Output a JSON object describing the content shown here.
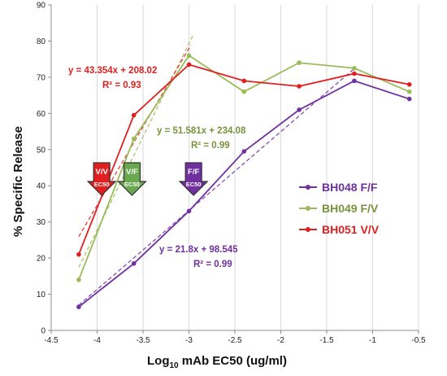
{
  "chart_data": {
    "type": "line",
    "title": "",
    "xlabel_main": "Log",
    "xlabel_sub": "10",
    "xlabel_rest": " mAb EC50 (ug/ml)",
    "ylabel": "% Specific Release",
    "xlim": [
      -4.5,
      -0.5
    ],
    "ylim": [
      0,
      90
    ],
    "xticks": [
      -4.5,
      -4,
      -3.5,
      -3,
      -2.5,
      -2,
      -1.5,
      -1,
      -0.5
    ],
    "xtick_labels": [
      "-4.5",
      "-4",
      "-3.5",
      "-3",
      "-2.5",
      "-2",
      "-1.5",
      "-1",
      "-0.5"
    ],
    "yticks": [
      0,
      10,
      20,
      30,
      40,
      50,
      60,
      70,
      80,
      90
    ],
    "ytick_labels": [
      "0",
      "10",
      "20",
      "30",
      "40",
      "50",
      "60",
      "70",
      "80",
      "90"
    ],
    "grid": "vertical",
    "legend_position": "right",
    "series": [
      {
        "name": "BH048 F/F",
        "color": "#7030A0",
        "x": [
          -4.2,
          -3.6,
          -3.0,
          -2.4,
          -1.8,
          -1.2,
          -0.6
        ],
        "y": [
          6.5,
          18.5,
          33,
          49.5,
          61,
          69,
          64
        ],
        "trend": {
          "slope": 21.8,
          "intercept": 98.545,
          "x0": -4.2,
          "x1": -1.2
        },
        "equation": "y = 21.8x + 98.545",
        "r2": "R² = 0.99",
        "ec50_label_top": "F/F",
        "ec50_label_bottom": "EC50",
        "ec50_x": -2.95,
        "ec50_color": "#7030A0"
      },
      {
        "name": "BH049 F/V",
        "color": "#9BBB59",
        "x": [
          -4.2,
          -3.6,
          -3.0,
          -2.4,
          -1.8,
          -1.2,
          -0.6
        ],
        "y": [
          14,
          53,
          76,
          66,
          74,
          72.5,
          66
        ],
        "trend": {
          "slope": 51.581,
          "intercept": 234.08,
          "x0": -4.2,
          "x1": -2.95
        },
        "equation": "y = 51.581x + 234.08",
        "r2": "R² = 0.99",
        "ec50_label_top": "V/F",
        "ec50_label_bottom": "EC50",
        "ec50_x": -3.62,
        "ec50_color": "#6AA84F"
      },
      {
        "name": "BH051 V/V",
        "color": "#E02020",
        "x": [
          -4.2,
          -3.6,
          -3.0,
          -2.4,
          -1.8,
          -1.2,
          -0.6
        ],
        "y": [
          21,
          59.5,
          73.5,
          69,
          67.5,
          71,
          68
        ],
        "trend": {
          "slope": 43.354,
          "intercept": 208.02,
          "x0": -4.2,
          "x1": -2.98
        },
        "equation": "y = 43.354x + 208.02",
        "r2": "R² = 0.93",
        "ec50_label_top": "V/V",
        "ec50_label_bottom": "EC50",
        "ec50_x": -3.95,
        "ec50_color": "#E02020"
      }
    ]
  }
}
